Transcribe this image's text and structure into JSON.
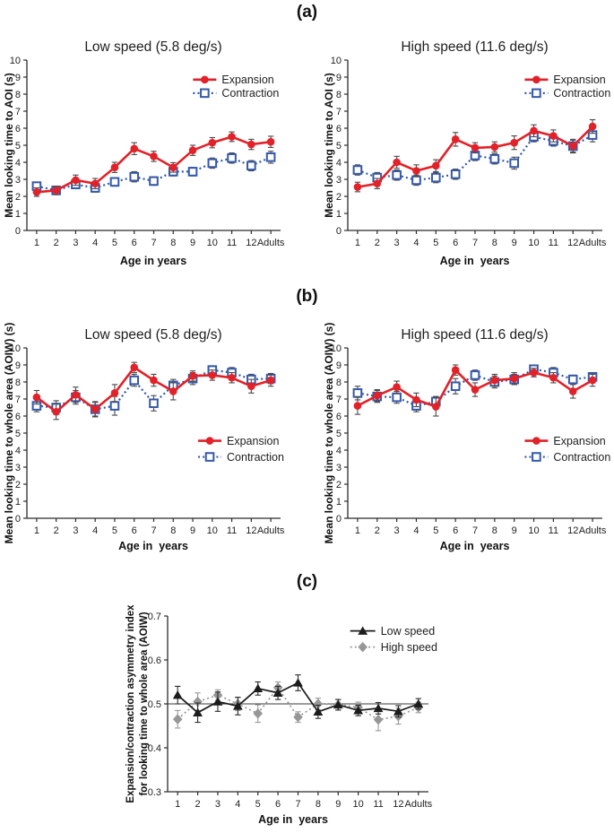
{
  "figure": {
    "panel_labels": [
      "(a)",
      "(b)",
      "(c)"
    ],
    "colors": {
      "axis": "#2b2b2b",
      "background": "#ffffff",
      "expansion_red": "#e22128",
      "contraction_blue": "#3558a8",
      "low_speed_black": "#1c1c1c",
      "high_speed_gray": "#979797"
    }
  },
  "chart_data": [
    {
      "id": "a_low",
      "panel": "a",
      "type": "line",
      "title": "Low speed (5.8 deg/s)",
      "xlabel": "Age in years",
      "ylabel": "Mean looking time to AOI (s)",
      "ylim": [
        0,
        10
      ],
      "ytick_step": 1,
      "grid": false,
      "legend_position": "top-right",
      "categories": [
        "1",
        "2",
        "3",
        "4",
        "5",
        "6",
        "7",
        "8",
        "9",
        "10",
        "11",
        "12",
        "Adults"
      ],
      "series": [
        {
          "name": "Expansion",
          "color": "#e22128",
          "error_color": "#4a4a4a",
          "marker": "filled-circle",
          "line_style": "solid",
          "line_width": 2.6,
          "values": [
            2.25,
            2.35,
            2.95,
            2.75,
            3.7,
            4.8,
            4.35,
            3.7,
            4.7,
            5.15,
            5.5,
            5.05,
            5.2
          ],
          "errors": [
            0.25,
            0.25,
            0.3,
            0.3,
            0.3,
            0.35,
            0.3,
            0.28,
            0.3,
            0.3,
            0.28,
            0.3,
            0.33
          ]
        },
        {
          "name": "Contraction",
          "color": "#3558a8",
          "error_color": "#4a4a4a",
          "marker": "open-square",
          "line_style": "dotted",
          "line_width": 2.2,
          "values": [
            2.6,
            2.35,
            2.7,
            2.5,
            2.85,
            3.15,
            2.9,
            3.45,
            3.45,
            3.95,
            4.25,
            3.8,
            4.3
          ],
          "errors": [
            0.22,
            0.2,
            0.25,
            0.25,
            0.25,
            0.3,
            0.25,
            0.25,
            0.25,
            0.3,
            0.3,
            0.3,
            0.35
          ]
        }
      ]
    },
    {
      "id": "a_high",
      "panel": "a",
      "type": "line",
      "title": "High speed (11.6 deg/s)",
      "xlabel": "Age in  years",
      "ylabel": "Mean looking time to AOI (s)",
      "ylim": [
        0,
        10
      ],
      "ytick_step": 1,
      "grid": false,
      "legend_position": "top-right",
      "categories": [
        "1",
        "2",
        "3",
        "4",
        "5",
        "6",
        "7",
        "8",
        "9",
        "10",
        "11",
        "12",
        "Adults"
      ],
      "series": [
        {
          "name": "Expansion",
          "color": "#e22128",
          "error_color": "#4a4a4a",
          "marker": "filled-circle",
          "line_style": "solid",
          "line_width": 2.6,
          "values": [
            2.55,
            2.75,
            4.0,
            3.5,
            3.8,
            5.35,
            4.85,
            4.9,
            5.15,
            5.85,
            5.55,
            4.95,
            6.1
          ],
          "errors": [
            0.28,
            0.3,
            0.35,
            0.35,
            0.35,
            0.4,
            0.3,
            0.3,
            0.4,
            0.35,
            0.35,
            0.4,
            0.4
          ]
        },
        {
          "name": "Contraction",
          "color": "#3558a8",
          "error_color": "#4a4a4a",
          "marker": "open-square",
          "line_style": "dotted",
          "line_width": 2.2,
          "values": [
            3.55,
            3.1,
            3.25,
            2.95,
            3.1,
            3.3,
            4.4,
            4.2,
            3.95,
            5.5,
            5.25,
            4.95,
            5.6
          ],
          "errors": [
            0.3,
            0.3,
            0.3,
            0.3,
            0.3,
            0.3,
            0.3,
            0.3,
            0.35,
            0.3,
            0.3,
            0.35,
            0.4
          ]
        }
      ]
    },
    {
      "id": "b_low",
      "panel": "b",
      "type": "line",
      "title": "Low speed (5.8 deg/s)",
      "xlabel": "Age in  years",
      "ylabel": "Mean looking time to whole area (AOIW) (s)",
      "ylim": [
        0,
        10
      ],
      "ytick_step": 1,
      "grid": false,
      "legend_position": "mid-right",
      "categories": [
        "1",
        "2",
        "3",
        "4",
        "5",
        "6",
        "7",
        "8",
        "9",
        "10",
        "11",
        "12",
        "Adults"
      ],
      "series": [
        {
          "name": "Expansion",
          "color": "#e22128",
          "error_color": "#4a4a4a",
          "marker": "filled-circle",
          "line_style": "solid",
          "line_width": 2.6,
          "values": [
            7.1,
            6.25,
            7.25,
            6.4,
            7.35,
            8.85,
            8.1,
            7.45,
            8.35,
            8.4,
            8.25,
            7.75,
            8.1
          ],
          "errors": [
            0.4,
            0.45,
            0.45,
            0.45,
            0.5,
            0.3,
            0.35,
            0.5,
            0.3,
            0.3,
            0.3,
            0.4,
            0.35
          ]
        },
        {
          "name": "Contraction",
          "color": "#3558a8",
          "error_color": "#4a4a4a",
          "marker": "open-square",
          "line_style": "dotted",
          "line_width": 2.2,
          "values": [
            6.6,
            6.5,
            7.1,
            6.4,
            6.6,
            8.1,
            6.75,
            7.8,
            8.2,
            8.7,
            8.55,
            8.15,
            8.2
          ],
          "errors": [
            0.35,
            0.4,
            0.4,
            0.4,
            0.55,
            0.35,
            0.45,
            0.35,
            0.35,
            0.25,
            0.3,
            0.3,
            0.3
          ]
        }
      ]
    },
    {
      "id": "b_high",
      "panel": "b",
      "type": "line",
      "title": "High speed (11.6 deg/s)",
      "xlabel": "Age in  years",
      "ylabel": "Mean looking time to whole area (AOIW) (s)",
      "ylim": [
        0,
        10
      ],
      "ytick_step": 1,
      "grid": false,
      "legend_position": "mid-right",
      "categories": [
        "1",
        "2",
        "3",
        "4",
        "5",
        "6",
        "7",
        "8",
        "9",
        "10",
        "11",
        "12",
        "Adults"
      ],
      "series": [
        {
          "name": "Expansion",
          "color": "#e22128",
          "error_color": "#4a4a4a",
          "marker": "filled-circle",
          "line_style": "solid",
          "line_width": 2.6,
          "values": [
            6.6,
            7.2,
            7.7,
            6.95,
            6.55,
            8.7,
            7.55,
            8.1,
            8.2,
            8.55,
            8.25,
            7.45,
            8.1
          ],
          "errors": [
            0.5,
            0.35,
            0.35,
            0.4,
            0.55,
            0.3,
            0.4,
            0.35,
            0.35,
            0.25,
            0.3,
            0.4,
            0.35
          ]
        },
        {
          "name": "Contraction",
          "color": "#3558a8",
          "error_color": "#4a4a4a",
          "marker": "open-square",
          "line_style": "dotted",
          "line_width": 2.2,
          "values": [
            7.35,
            7.15,
            7.1,
            6.6,
            6.85,
            7.75,
            8.4,
            8.0,
            8.15,
            8.75,
            8.55,
            8.15,
            8.3
          ],
          "errors": [
            0.4,
            0.35,
            0.35,
            0.35,
            0.3,
            0.45,
            0.3,
            0.35,
            0.3,
            0.2,
            0.3,
            0.25,
            0.25
          ]
        }
      ]
    },
    {
      "id": "c_asymmetry",
      "panel": "c",
      "type": "line",
      "title": "",
      "xlabel": "Age in  years",
      "ylabel": "Expansion/contraction asymmetry index\nfor looking time to whole area (AOIW)",
      "ylim": [
        0.3,
        0.7
      ],
      "ytick_step": 0.1,
      "grid": false,
      "reference_line": 0.5,
      "legend_position": "top-right",
      "categories": [
        "1",
        "2",
        "3",
        "4",
        "5",
        "6",
        "7",
        "8",
        "9",
        "10",
        "11",
        "12",
        "Adults"
      ],
      "series": [
        {
          "name": "Low speed",
          "color": "#1c1c1c",
          "error_color": "#2a2a2a",
          "marker": "filled-triangle",
          "line_style": "solid",
          "line_width": 1.7,
          "values": [
            0.52,
            0.48,
            0.505,
            0.495,
            0.535,
            0.525,
            0.548,
            0.482,
            0.498,
            0.485,
            0.49,
            0.483,
            0.5
          ],
          "errors": [
            0.02,
            0.022,
            0.022,
            0.02,
            0.015,
            0.015,
            0.018,
            0.015,
            0.012,
            0.012,
            0.013,
            0.013,
            0.012
          ]
        },
        {
          "name": "High speed",
          "color": "#979797",
          "error_color": "#9a9a9a",
          "marker": "filled-diamond",
          "line_style": "dotted",
          "line_width": 1.7,
          "values": [
            0.465,
            0.505,
            0.52,
            0.5,
            0.478,
            0.537,
            0.47,
            0.5,
            0.498,
            0.492,
            0.464,
            0.472,
            0.492
          ],
          "errors": [
            0.02,
            0.02,
            0.012,
            0.015,
            0.02,
            0.013,
            0.012,
            0.013,
            0.012,
            0.012,
            0.025,
            0.018,
            0.012
          ]
        }
      ]
    }
  ]
}
